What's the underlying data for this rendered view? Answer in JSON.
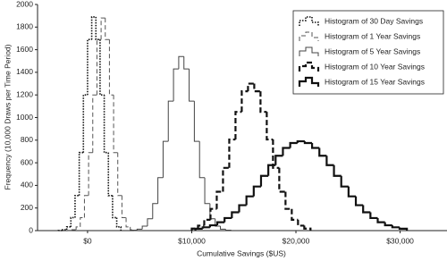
{
  "chart_data": {
    "type": "histogram",
    "xlabel": "Cumulative Savings ($US)",
    "ylabel": "Frequency (10,000 Draws per Time Period)",
    "xlim": [
      -4800,
      34500
    ],
    "ylim": [
      0,
      2000
    ],
    "xticks": [
      {
        "value": 0,
        "label": "$0"
      },
      {
        "value": 10000,
        "label": "$10,000"
      },
      {
        "value": 20000,
        "label": "$20,000"
      },
      {
        "value": 30000,
        "label": "$30,000"
      }
    ],
    "yticks": [
      0,
      200,
      400,
      600,
      800,
      1000,
      1200,
      1400,
      1600,
      1800,
      2000
    ],
    "legend": "upper right",
    "series": [
      {
        "name": "Histogram of 30 Day Savings",
        "color": "#111111",
        "linestyle": "dotted",
        "linewidth": 1.6,
        "bins": [
          -2800,
          -2400,
          -2000,
          -1600,
          -1200,
          -800,
          -400,
          0,
          400,
          800,
          1200,
          1600,
          2000,
          2400,
          2800,
          3200
        ],
        "values": [
          1,
          8,
          33,
          115,
          310,
          690,
          1200,
          1690,
          1890,
          1690,
          1200,
          690,
          310,
          115,
          33
        ]
      },
      {
        "name": "Histogram of 1 Year Savings",
        "color": "#555555",
        "linestyle": "dashed",
        "linewidth": 1,
        "bins": [
          -1900,
          -1500,
          -1100,
          -700,
          -300,
          100,
          500,
          900,
          1300,
          1700,
          2100,
          2500,
          2900,
          3300,
          3700,
          4100,
          4500,
          4900
        ],
        "values": [
          2,
          8,
          33,
          115,
          310,
          690,
          1200,
          1690,
          1880,
          1690,
          1200,
          690,
          310,
          115,
          33,
          8,
          2
        ]
      },
      {
        "name": "Histogram of 5 Year Savings",
        "color": "#444444",
        "linestyle": "solid",
        "linewidth": 1,
        "bins": [
          4250,
          4750,
          5250,
          5750,
          6250,
          6750,
          7250,
          7750,
          8250,
          8750,
          9250,
          9750,
          10250,
          10750,
          11250,
          11750,
          12250,
          12750,
          13250,
          13750
        ],
        "values": [
          4,
          13,
          40,
          105,
          239,
          468,
          790,
          1145,
          1430,
          1540,
          1430,
          1145,
          790,
          468,
          239,
          105,
          40,
          13,
          4
        ]
      },
      {
        "name": "Histogram of 10 Year Savings",
        "color": "#111111",
        "linestyle": "dashed",
        "linewidth": 2.2,
        "bins": [
          10000,
          10600,
          11200,
          11800,
          12400,
          13000,
          13600,
          14200,
          14800,
          15400,
          16000,
          16600,
          17200,
          17800,
          18400,
          19000,
          19600,
          20200,
          20800,
          21400
        ],
        "values": [
          18,
          44,
          96,
          192,
          344,
          555,
          806,
          1050,
          1232,
          1300,
          1232,
          1050,
          806,
          555,
          344,
          192,
          96,
          44,
          18
        ]
      },
      {
        "name": "Histogram of 15 Year Savings",
        "color": "#111111",
        "linestyle": "solid",
        "linewidth": 2.2,
        "bins": [
          10350,
          11050,
          11750,
          12450,
          13150,
          13850,
          14550,
          15250,
          15950,
          16650,
          17350,
          18050,
          18750,
          19450,
          20150,
          20850,
          21550,
          22250,
          22950,
          23650,
          24350,
          25050,
          25750,
          26450,
          27150,
          27850,
          28550,
          29250,
          29950,
          30650
        ],
        "values": [
          17,
          29,
          47,
          74,
          111,
          162,
          225,
          303,
          390,
          484,
          579,
          662,
          731,
          775,
          790,
          775,
          731,
          662,
          579,
          484,
          390,
          303,
          225,
          162,
          111,
          74,
          47,
          29,
          17
        ]
      }
    ]
  }
}
